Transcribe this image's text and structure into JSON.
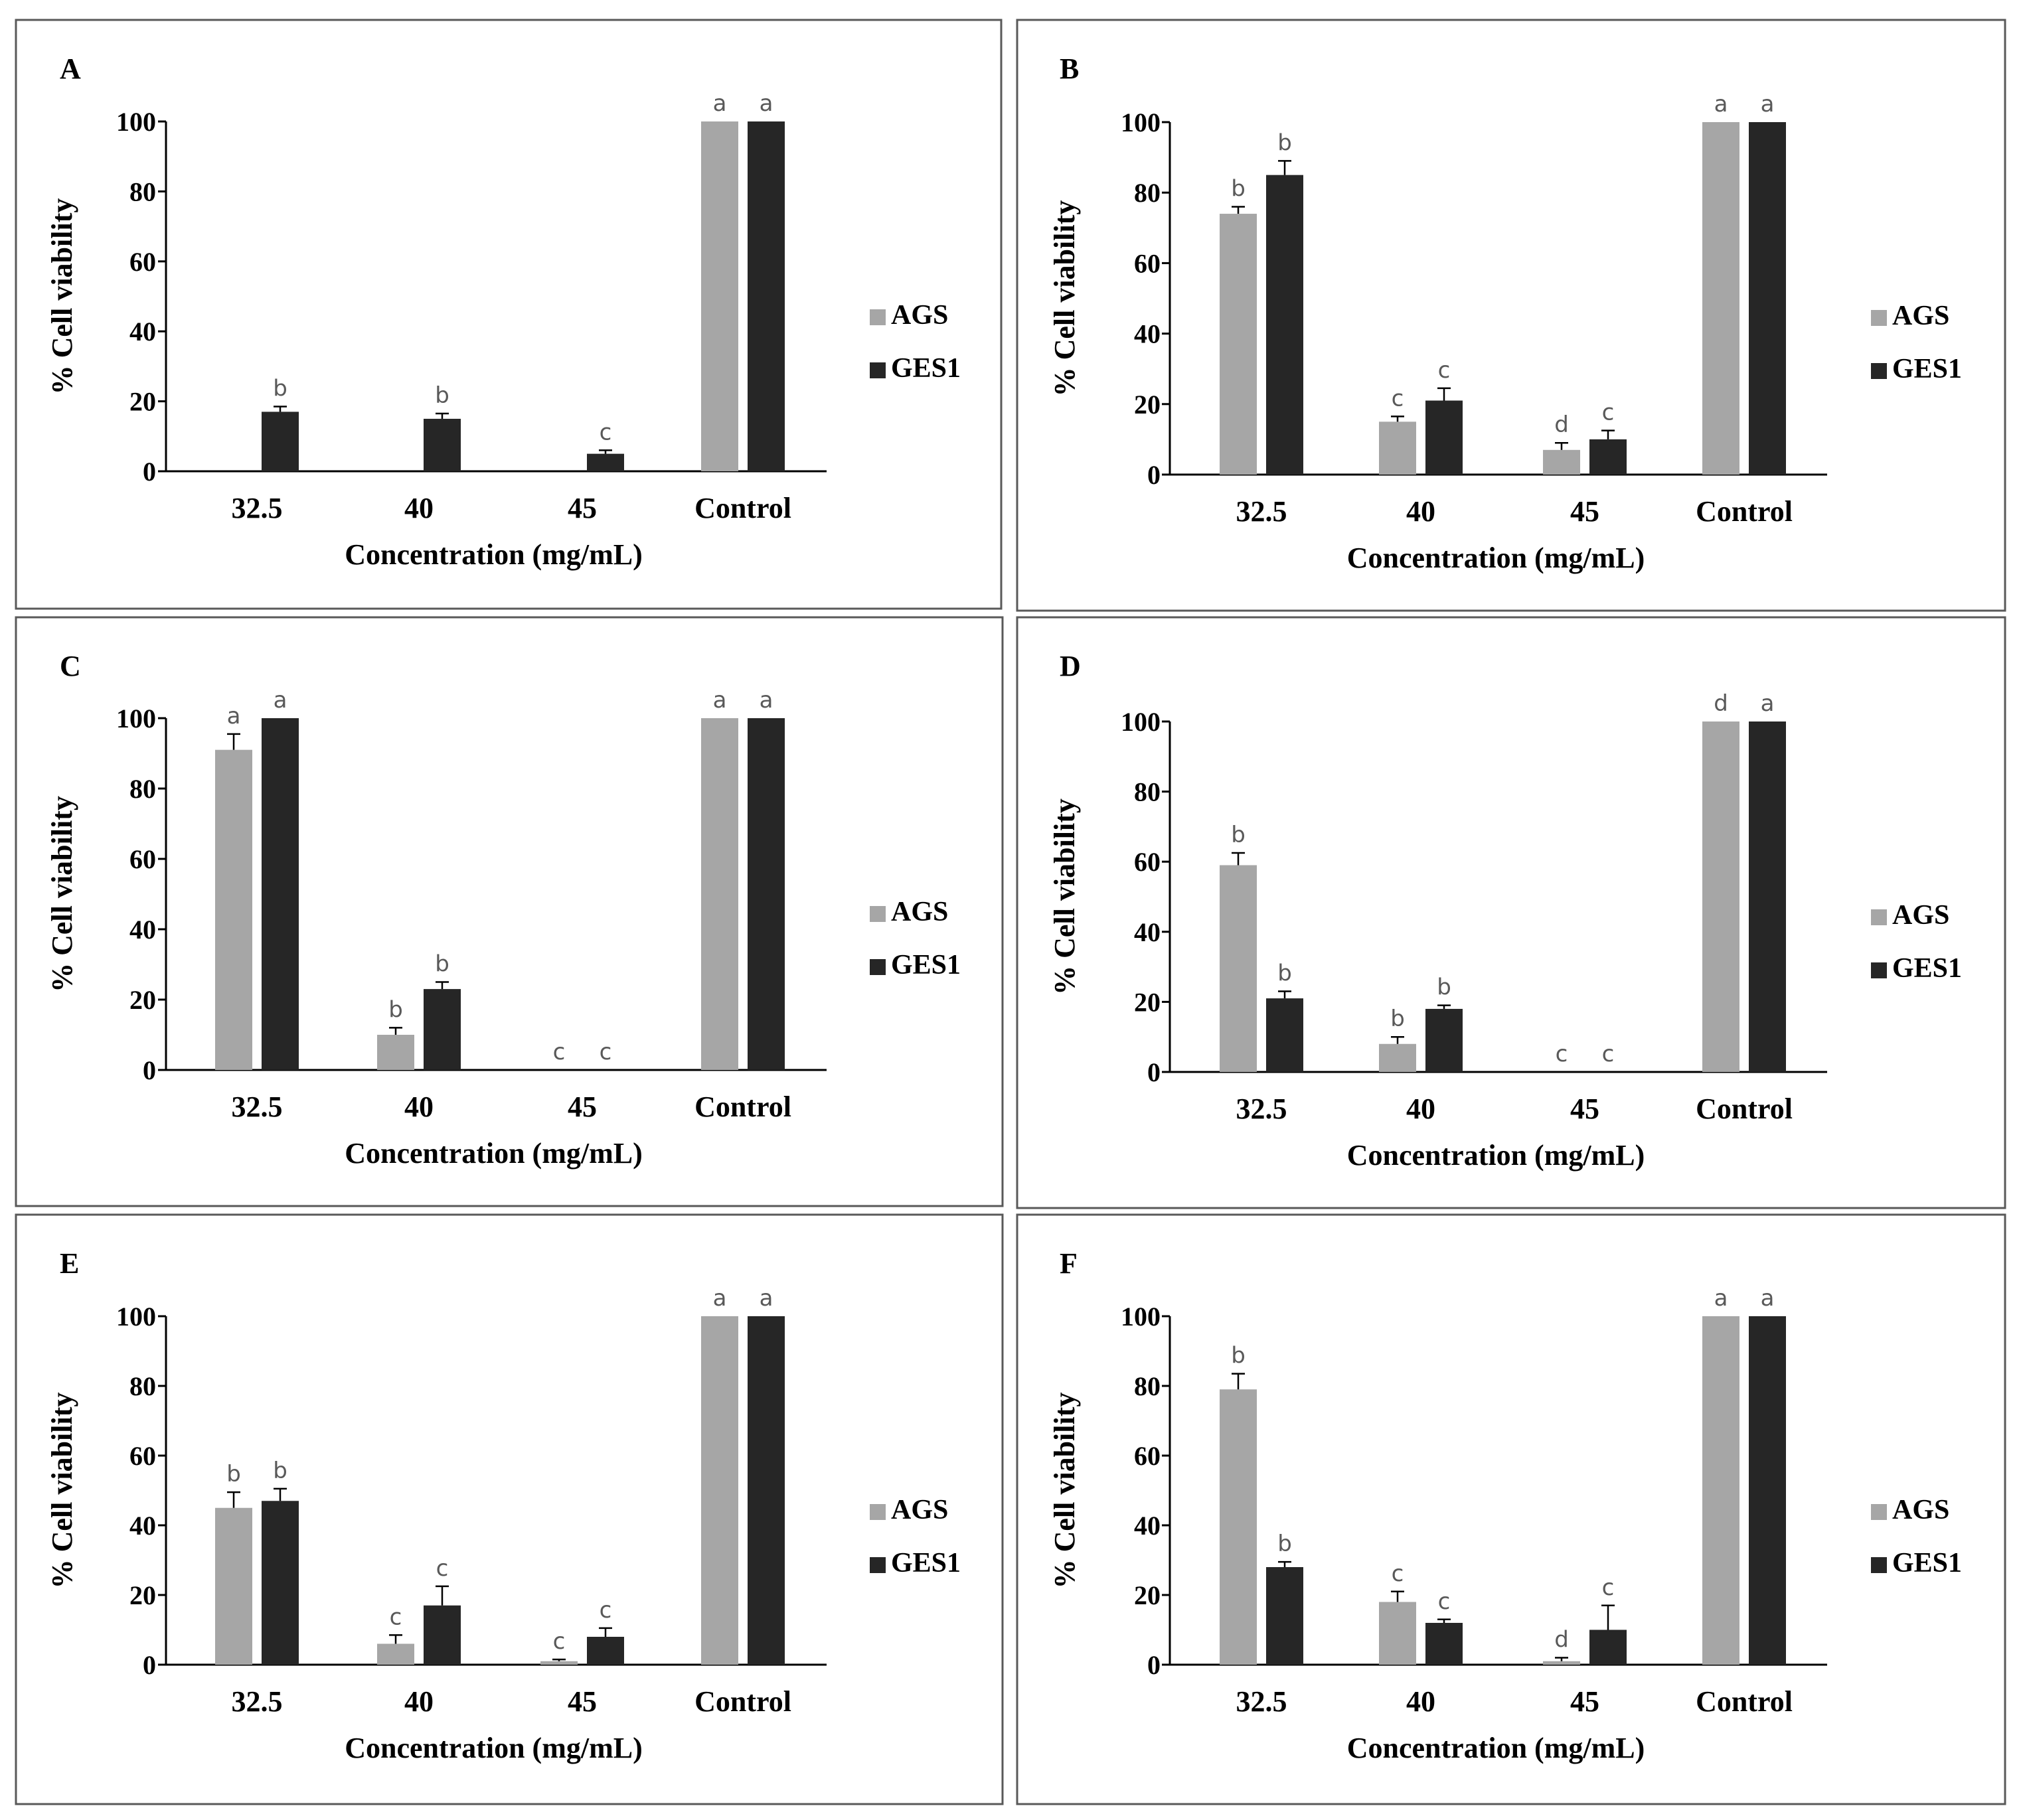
{
  "colors": {
    "AGS": "#a6a6a6",
    "GES1": "#262626"
  },
  "chart_data": [
    {
      "panel": "A",
      "type": "bar",
      "categories": [
        "32.5",
        "40",
        "45",
        "Control"
      ],
      "xlabel": "Concentration (mg/mL)",
      "ylabel": "% Cell viability",
      "ylim": [
        0,
        100
      ],
      "yticks": [
        "0",
        "20",
        "40",
        "60",
        "80",
        "100"
      ],
      "series": [
        {
          "name": "AGS",
          "values": [
            0,
            0,
            0,
            100
          ],
          "errors": [
            0,
            0,
            0,
            0
          ],
          "letters": [
            "",
            "",
            "",
            "a"
          ]
        },
        {
          "name": "GES1",
          "values": [
            17,
            15,
            5,
            100
          ],
          "errors": [
            1.5,
            1.5,
            1,
            0
          ],
          "letters": [
            "b",
            "b",
            "c",
            "a"
          ]
        }
      ]
    },
    {
      "panel": "B",
      "type": "bar",
      "categories": [
        "32.5",
        "40",
        "45",
        "Control"
      ],
      "xlabel": "Concentration (mg/mL)",
      "ylabel": "% Cell viability",
      "ylim": [
        0,
        100
      ],
      "yticks": [
        "0",
        "20",
        "40",
        "60",
        "80",
        "100"
      ],
      "series": [
        {
          "name": "AGS",
          "values": [
            74,
            15,
            7,
            100
          ],
          "errors": [
            2,
            1.5,
            2,
            0
          ],
          "letters": [
            "b",
            "c",
            "d",
            "a"
          ]
        },
        {
          "name": "GES1",
          "values": [
            85,
            21,
            10,
            100
          ],
          "errors": [
            4,
            3.5,
            2.5,
            0
          ],
          "letters": [
            "b",
            "c",
            "c",
            "a"
          ]
        }
      ]
    },
    {
      "panel": "C",
      "type": "bar",
      "categories": [
        "32.5",
        "40",
        "45",
        "Control"
      ],
      "xlabel": "Concentration (mg/mL)",
      "ylabel": "% Cell viability",
      "ylim": [
        0,
        100
      ],
      "yticks": [
        "0",
        "20",
        "40",
        "60",
        "80",
        "100"
      ],
      "series": [
        {
          "name": "AGS",
          "values": [
            91,
            10,
            0,
            100
          ],
          "errors": [
            4.5,
            2,
            0,
            0
          ],
          "letters": [
            "a",
            "b",
            "c",
            "a"
          ]
        },
        {
          "name": "GES1",
          "values": [
            100,
            23,
            0,
            100
          ],
          "errors": [
            0,
            2,
            0,
            0
          ],
          "letters": [
            "a",
            "b",
            "c",
            "a"
          ]
        }
      ]
    },
    {
      "panel": "D",
      "type": "bar",
      "categories": [
        "32.5",
        "40",
        "45",
        "Control"
      ],
      "xlabel": "Concentration (mg/mL)",
      "ylabel": "% Cell viability",
      "ylim": [
        0,
        100
      ],
      "yticks": [
        "0",
        "20",
        "40",
        "60",
        "80",
        "100"
      ],
      "series": [
        {
          "name": "AGS",
          "values": [
            59,
            8,
            0,
            100
          ],
          "errors": [
            3.5,
            2,
            0,
            0
          ],
          "letters": [
            "b",
            "b",
            "c",
            "d"
          ]
        },
        {
          "name": "GES1",
          "values": [
            21,
            18,
            0,
            100
          ],
          "errors": [
            2,
            1,
            0,
            0
          ],
          "letters": [
            "b",
            "b",
            "c",
            "a"
          ]
        }
      ]
    },
    {
      "panel": "E",
      "type": "bar",
      "categories": [
        "32.5",
        "40",
        "45",
        "Control"
      ],
      "xlabel": "Concentration (mg/mL)",
      "ylabel": "% Cell viability",
      "ylim": [
        0,
        100
      ],
      "yticks": [
        "0",
        "20",
        "40",
        "60",
        "80",
        "100"
      ],
      "series": [
        {
          "name": "AGS",
          "values": [
            45,
            6,
            1,
            100
          ],
          "errors": [
            4.5,
            2.5,
            0.5,
            0
          ],
          "letters": [
            "b",
            "c",
            "c",
            "a"
          ]
        },
        {
          "name": "GES1",
          "values": [
            47,
            17,
            8,
            100
          ],
          "errors": [
            3.5,
            5.5,
            2.5,
            0
          ],
          "letters": [
            "b",
            "c",
            "c",
            "a"
          ]
        }
      ]
    },
    {
      "panel": "F",
      "type": "bar",
      "categories": [
        "32.5",
        "40",
        "45",
        "Control"
      ],
      "xlabel": "Concentration (mg/mL)",
      "ylabel": "% Cell viability",
      "ylim": [
        0,
        100
      ],
      "yticks": [
        "0",
        "20",
        "40",
        "60",
        "80",
        "100"
      ],
      "series": [
        {
          "name": "AGS",
          "values": [
            79,
            18,
            1,
            100
          ],
          "errors": [
            4.5,
            3,
            1,
            0
          ],
          "letters": [
            "b",
            "c",
            "d",
            "a"
          ]
        },
        {
          "name": "GES1",
          "values": [
            28,
            12,
            10,
            100
          ],
          "errors": [
            1.5,
            1,
            7,
            0
          ],
          "letters": [
            "b",
            "c",
            "c",
            "a"
          ]
        }
      ]
    }
  ]
}
